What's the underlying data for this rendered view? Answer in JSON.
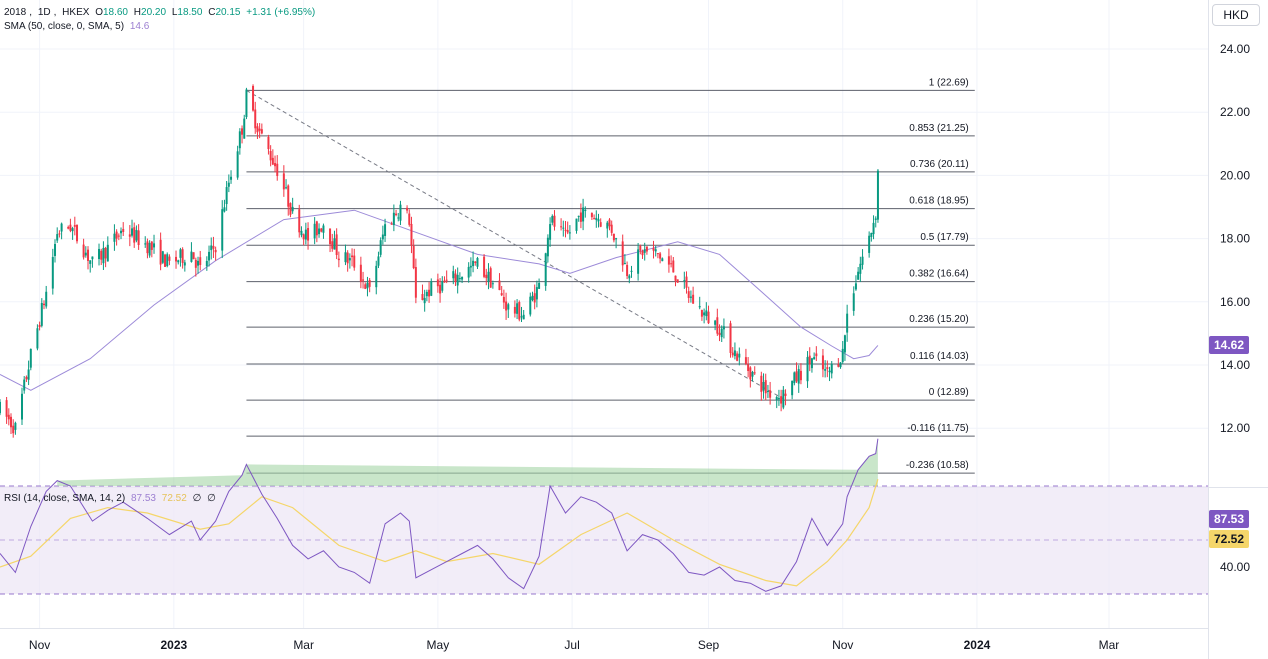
{
  "header": {
    "symbol": "2018",
    "interval": "1D",
    "exchange": "HKEX",
    "open_label": "O",
    "open": "18.60",
    "high_label": "H",
    "high": "20.20",
    "low_label": "L",
    "low": "18.50",
    "close_label": "C",
    "close": "20.15",
    "change": "+1.31 (+6.95%)",
    "sma_label": "SMA (50, close, 0, SMA, 5)",
    "sma_value": "14.6",
    "currency": "HKD"
  },
  "rsi_legend": {
    "label": "RSI (14, close, SMA, 14, 2)",
    "rsi_value": "87.53",
    "rsi_ma_value": "72.52",
    "extra1": "∅",
    "extra2": "∅"
  },
  "price_axis": {
    "ticks": [
      "24.00",
      "22.00",
      "20.00",
      "18.00",
      "16.00",
      "14.00",
      "12.00"
    ]
  },
  "rsi_axis": {
    "ticks": [
      "40.00"
    ]
  },
  "time_axis": {
    "labels": [
      "Nov",
      "2023",
      "Mar",
      "May",
      "Jul",
      "Sep",
      "Nov",
      "2024",
      "Mar"
    ]
  },
  "tags": {
    "sma": "14.62",
    "rsi": "87.53",
    "rsi_ma": "72.52"
  },
  "colors": {
    "up": "#089981",
    "down": "#f23645",
    "sma": "#9c8ad8",
    "rsi": "#7e57c2",
    "rsi_ma": "#f5d66a",
    "fib_line": "#5d606b",
    "band": "#ede7f6",
    "band_line": "#7e57c2",
    "grid": "#f0f3fa"
  },
  "chart_data": [
    {
      "type": "candlestick",
      "title": "2018, 1D, HKEX",
      "ylim": [
        10,
        25
      ],
      "x_range": [
        "2022-10-14",
        "2024-04-15"
      ],
      "x_ticks": [
        {
          "date": "2022-11-01",
          "label": "Nov"
        },
        {
          "date": "2023-01-01",
          "label": "2023"
        },
        {
          "date": "2023-03-01",
          "label": "Mar"
        },
        {
          "date": "2023-05-01",
          "label": "May"
        },
        {
          "date": "2023-07-01",
          "label": "Jul"
        },
        {
          "date": "2023-09-01",
          "label": "Sep"
        },
        {
          "date": "2023-11-01",
          "label": "Nov"
        },
        {
          "date": "2024-01-01",
          "label": "2024"
        },
        {
          "date": "2024-03-01",
          "label": "Mar"
        }
      ],
      "y_ticks": [
        12,
        14,
        16,
        18,
        20,
        22,
        24
      ],
      "start_date": "2022-10-14",
      "close_path": [
        [
          "2022-10-14",
          12.6
        ],
        [
          "2022-10-21",
          12.0
        ],
        [
          "2022-10-28",
          14.3
        ],
        [
          "2022-11-04",
          16.3
        ],
        [
          "2022-11-09",
          18.2
        ],
        [
          "2022-11-15",
          18.4
        ],
        [
          "2022-11-25",
          17.2
        ],
        [
          "2022-12-02",
          17.7
        ],
        [
          "2022-12-09",
          18.3
        ],
        [
          "2022-12-20",
          17.8
        ],
        [
          "2022-12-30",
          17.2
        ],
        [
          "2023-01-09",
          17.6
        ],
        [
          "2023-01-13",
          17.0
        ],
        [
          "2023-01-20",
          17.8
        ],
        [
          "2023-01-26",
          19.8
        ],
        [
          "2023-02-01",
          21.5
        ],
        [
          "2023-02-03",
          22.5
        ],
        [
          "2023-02-10",
          21.2
        ],
        [
          "2023-02-17",
          20.2
        ],
        [
          "2023-02-24",
          18.8
        ],
        [
          "2023-03-03",
          18.0
        ],
        [
          "2023-03-10",
          18.5
        ],
        [
          "2023-03-17",
          17.5
        ],
        [
          "2023-03-24",
          17.2
        ],
        [
          "2023-03-31",
          16.3
        ],
        [
          "2023-04-07",
          18.4
        ],
        [
          "2023-04-14",
          19.0
        ],
        [
          "2023-04-18",
          18.6
        ],
        [
          "2023-04-21",
          16.0
        ],
        [
          "2023-04-28",
          16.4
        ],
        [
          "2023-05-05",
          16.6
        ],
        [
          "2023-05-12",
          16.9
        ],
        [
          "2023-05-19",
          17.2
        ],
        [
          "2023-05-26",
          16.6
        ],
        [
          "2023-06-02",
          15.8
        ],
        [
          "2023-06-09",
          15.6
        ],
        [
          "2023-06-16",
          16.5
        ],
        [
          "2023-06-21",
          18.6
        ],
        [
          "2023-06-28",
          18.0
        ],
        [
          "2023-07-05",
          18.8
        ],
        [
          "2023-07-12",
          18.7
        ],
        [
          "2023-07-19",
          18.3
        ],
        [
          "2023-07-26",
          17.0
        ],
        [
          "2023-08-02",
          17.6
        ],
        [
          "2023-08-09",
          17.5
        ],
        [
          "2023-08-16",
          17.0
        ],
        [
          "2023-08-23",
          16.2
        ],
        [
          "2023-08-30",
          15.6
        ],
        [
          "2023-09-06",
          15.2
        ],
        [
          "2023-09-13",
          14.4
        ],
        [
          "2023-09-20",
          13.8
        ],
        [
          "2023-09-27",
          13.2
        ],
        [
          "2023-10-04",
          13.0
        ],
        [
          "2023-10-11",
          13.6
        ],
        [
          "2023-10-18",
          14.2
        ],
        [
          "2023-10-25",
          13.7
        ],
        [
          "2023-11-01",
          14.4
        ],
        [
          "2023-11-03",
          15.6
        ],
        [
          "2023-11-08",
          17.0
        ],
        [
          "2023-11-13",
          18.0
        ],
        [
          "2023-11-16",
          18.84
        ],
        [
          "2023-11-17",
          20.15
        ]
      ],
      "last_candle": {
        "open": 18.6,
        "high": 20.2,
        "low": 18.5,
        "close": 20.15
      },
      "sma50": [
        [
          "2022-10-14",
          13.7
        ],
        [
          "2022-10-28",
          13.2
        ],
        [
          "2022-11-24",
          14.2
        ],
        [
          "2022-12-23",
          15.9
        ],
        [
          "2023-01-20",
          17.3
        ],
        [
          "2023-02-20",
          18.6
        ],
        [
          "2023-03-24",
          18.9
        ],
        [
          "2023-04-21",
          18.2
        ],
        [
          "2023-05-19",
          17.5
        ],
        [
          "2023-06-16",
          17.2
        ],
        [
          "2023-06-30",
          16.9
        ],
        [
          "2023-07-21",
          17.4
        ],
        [
          "2023-08-18",
          17.9
        ],
        [
          "2023-09-06",
          17.5
        ],
        [
          "2023-09-27",
          16.2
        ],
        [
          "2023-10-13",
          15.2
        ],
        [
          "2023-10-27",
          14.6
        ],
        [
          "2023-11-06",
          14.2
        ],
        [
          "2023-11-13",
          14.3
        ],
        [
          "2023-11-17",
          14.62
        ]
      ],
      "fibonacci": {
        "from": [
          "2023-02-03",
          22.69
        ],
        "to": [
          "2023-10-06",
          12.89
        ],
        "extend_to": "2023-12-31",
        "levels": [
          {
            "ratio": "1",
            "price": 22.69
          },
          {
            "ratio": "0.853",
            "price": 21.25
          },
          {
            "ratio": "0.736",
            "price": 20.11
          },
          {
            "ratio": "0.618",
            "price": 18.95
          },
          {
            "ratio": "0.5",
            "price": 17.79
          },
          {
            "ratio": "0.382",
            "price": 16.64
          },
          {
            "ratio": "0.236",
            "price": 15.2
          },
          {
            "ratio": "0.116",
            "price": 14.03
          },
          {
            "ratio": "0",
            "price": 12.89
          },
          {
            "ratio": "-0.116",
            "price": 11.75
          },
          {
            "ratio": "-0.236",
            "price": 10.58
          }
        ]
      }
    },
    {
      "type": "line",
      "title": "RSI (14, close, SMA, 14, 2)",
      "ylim": [
        20,
        100
      ],
      "y_ticks": [
        40
      ],
      "bands": {
        "upper": 70,
        "middle": 50,
        "lower": 30
      },
      "rsi": [
        [
          "2022-10-14",
          45
        ],
        [
          "2022-10-21",
          38
        ],
        [
          "2022-10-28",
          55
        ],
        [
          "2022-11-04",
          68
        ],
        [
          "2022-11-09",
          72
        ],
        [
          "2022-11-15",
          70
        ],
        [
          "2022-11-25",
          57
        ],
        [
          "2022-12-02",
          61
        ],
        [
          "2022-12-09",
          64
        ],
        [
          "2022-12-20",
          58
        ],
        [
          "2022-12-30",
          52
        ],
        [
          "2023-01-09",
          57
        ],
        [
          "2023-01-13",
          50
        ],
        [
          "2023-01-20",
          57
        ],
        [
          "2023-01-26",
          68
        ],
        [
          "2023-02-01",
          74
        ],
        [
          "2023-02-03",
          78
        ],
        [
          "2023-02-10",
          67
        ],
        [
          "2023-02-17",
          58
        ],
        [
          "2023-02-24",
          48
        ],
        [
          "2023-03-03",
          43
        ],
        [
          "2023-03-10",
          46
        ],
        [
          "2023-03-17",
          40
        ],
        [
          "2023-03-24",
          38
        ],
        [
          "2023-03-31",
          34
        ],
        [
          "2023-04-07",
          56
        ],
        [
          "2023-04-14",
          60
        ],
        [
          "2023-04-18",
          57
        ],
        [
          "2023-04-21",
          36
        ],
        [
          "2023-04-28",
          39
        ],
        [
          "2023-05-05",
          42
        ],
        [
          "2023-05-12",
          45
        ],
        [
          "2023-05-19",
          48
        ],
        [
          "2023-05-26",
          43
        ],
        [
          "2023-06-02",
          36
        ],
        [
          "2023-06-09",
          32
        ],
        [
          "2023-06-16",
          44
        ],
        [
          "2023-06-21",
          70
        ],
        [
          "2023-06-28",
          60
        ],
        [
          "2023-07-05",
          66
        ],
        [
          "2023-07-12",
          64
        ],
        [
          "2023-07-19",
          60
        ],
        [
          "2023-07-26",
          46
        ],
        [
          "2023-08-02",
          52
        ],
        [
          "2023-08-09",
          50
        ],
        [
          "2023-08-16",
          45
        ],
        [
          "2023-08-23",
          38
        ],
        [
          "2023-08-30",
          37
        ],
        [
          "2023-09-06",
          40
        ],
        [
          "2023-09-13",
          35
        ],
        [
          "2023-09-20",
          34
        ],
        [
          "2023-09-27",
          31
        ],
        [
          "2023-10-04",
          33
        ],
        [
          "2023-10-11",
          42
        ],
        [
          "2023-10-18",
          58
        ],
        [
          "2023-10-25",
          48
        ],
        [
          "2023-11-01",
          56
        ],
        [
          "2023-11-03",
          66
        ],
        [
          "2023-11-08",
          76
        ],
        [
          "2023-11-13",
          81
        ],
        [
          "2023-11-16",
          82
        ],
        [
          "2023-11-17",
          87.53
        ]
      ],
      "rsi_ma": [
        [
          "2022-10-14",
          40
        ],
        [
          "2022-10-28",
          44
        ],
        [
          "2022-11-15",
          58
        ],
        [
          "2022-12-02",
          62
        ],
        [
          "2022-12-20",
          60
        ],
        [
          "2023-01-13",
          54
        ],
        [
          "2023-01-26",
          56
        ],
        [
          "2023-02-10",
          66
        ],
        [
          "2023-02-24",
          62
        ],
        [
          "2023-03-17",
          48
        ],
        [
          "2023-04-07",
          42
        ],
        [
          "2023-04-21",
          46
        ],
        [
          "2023-05-05",
          42
        ],
        [
          "2023-05-26",
          45
        ],
        [
          "2023-06-16",
          41
        ],
        [
          "2023-07-05",
          52
        ],
        [
          "2023-07-26",
          60
        ],
        [
          "2023-08-16",
          50
        ],
        [
          "2023-09-06",
          41
        ],
        [
          "2023-09-27",
          35
        ],
        [
          "2023-10-11",
          33
        ],
        [
          "2023-10-25",
          42
        ],
        [
          "2023-11-03",
          50
        ],
        [
          "2023-11-13",
          62
        ],
        [
          "2023-11-17",
          72.52
        ]
      ]
    }
  ]
}
